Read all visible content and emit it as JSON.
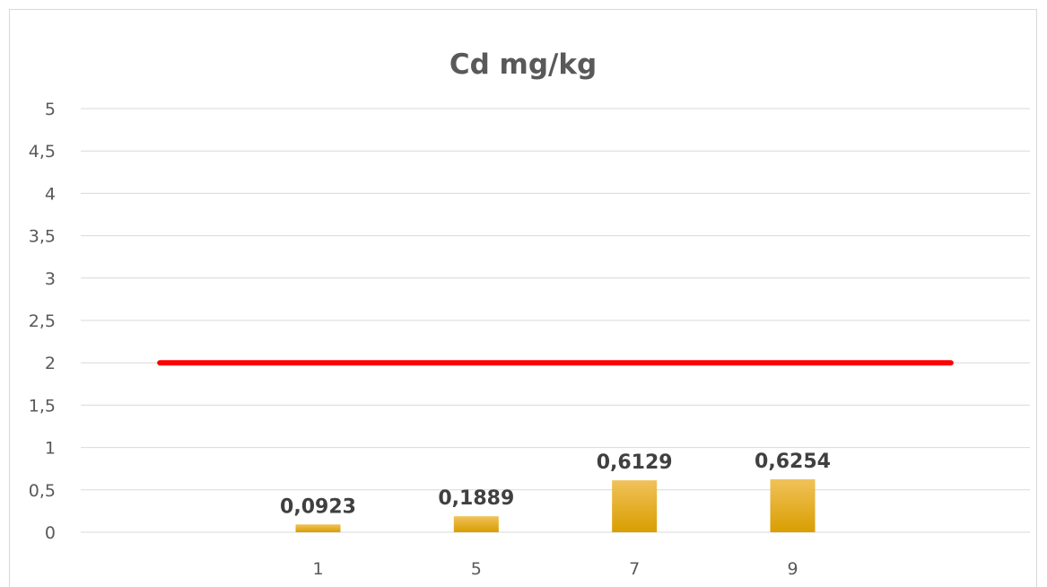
{
  "chart_data": {
    "type": "bar",
    "title": "Cd mg/kg",
    "xlabel": "",
    "ylabel": "",
    "categories": [
      "",
      "1",
      "5",
      "7",
      "9",
      ""
    ],
    "series": [
      {
        "values": [
          null,
          0.0923,
          0.1889,
          0.6129,
          0.6254,
          null
        ],
        "color": "#e3a500",
        "data_labels": [
          "",
          "0,0923",
          "0,1889",
          "0,6129",
          "0,6254",
          ""
        ]
      }
    ],
    "reference_line": {
      "value": 2,
      "color": "#ff0000"
    },
    "ylim": [
      0,
      5
    ],
    "yticks": [
      0,
      0.5,
      1,
      1.5,
      2,
      2.5,
      3,
      3.5,
      4,
      4.5,
      5
    ],
    "ytick_labels": [
      "0",
      "0,5",
      "1",
      "1,5",
      "2",
      "2,5",
      "3",
      "3,5",
      "4",
      "4,5",
      "5"
    ],
    "grid": true,
    "legend": "none"
  },
  "colors": {
    "grid": "#d9d9d9",
    "text": "#595959",
    "bar": "#e3a500",
    "limit_line": "#ff0000"
  }
}
